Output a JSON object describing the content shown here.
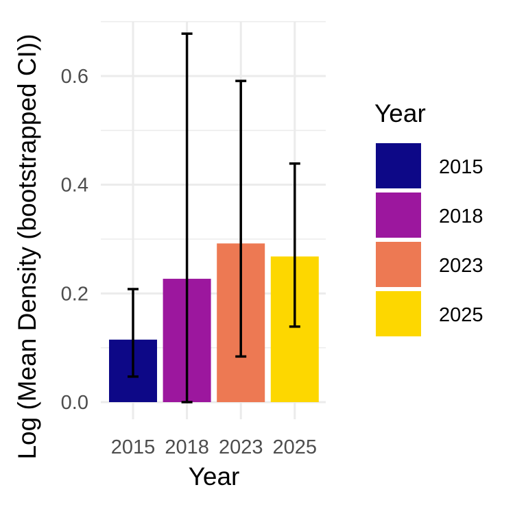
{
  "chart_data": {
    "type": "bar",
    "categories": [
      "2015",
      "2018",
      "2023",
      "2025"
    ],
    "values": [
      0.115,
      0.227,
      0.292,
      0.268
    ],
    "error_low": [
      0.047,
      0.0,
      0.084,
      0.139
    ],
    "error_high": [
      0.208,
      0.678,
      0.591,
      0.439
    ],
    "colors": [
      "#0d0887",
      "#9c179e",
      "#ed7953",
      "#fdd700"
    ],
    "xlabel": "Year",
    "ylabel": "Log (Mean Density (bootstrapped CI))",
    "ylim": [
      0,
      0.7
    ],
    "yticks": [
      "0.0",
      "0.2",
      "0.4",
      "0.6"
    ],
    "ytick_values": [
      0,
      0.2,
      0.4,
      0.6
    ],
    "grid": true,
    "legend": {
      "title": "Year",
      "placement": "right",
      "entries": [
        "2015",
        "2018",
        "2023",
        "2025"
      ]
    }
  }
}
